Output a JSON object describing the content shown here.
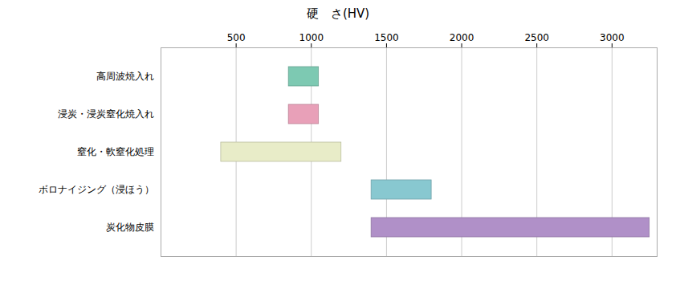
{
  "chart_data": {
    "type": "bar",
    "orientation": "horizontal",
    "title": "硬　さ(HV)",
    "categories": [
      "高周波焼入れ",
      "浸炭・浸炭窒化焼入れ",
      "窒化・軟窒化処理",
      "ボロナイジング（浸ほう）",
      "炭化物皮膜"
    ],
    "values": [
      [
        850,
        1050
      ],
      [
        850,
        1050
      ],
      [
        400,
        1200
      ],
      [
        1400,
        1800
      ],
      [
        1400,
        3250
      ]
    ],
    "colors": [
      "#7dc9b2",
      "#e8a0b8",
      "#e8ecc8",
      "#88c8d0",
      "#b090c8"
    ],
    "xlim": [
      0,
      3300
    ],
    "xticks": [
      500,
      1000,
      1500,
      2000,
      2500,
      3000
    ],
    "grid": true
  }
}
